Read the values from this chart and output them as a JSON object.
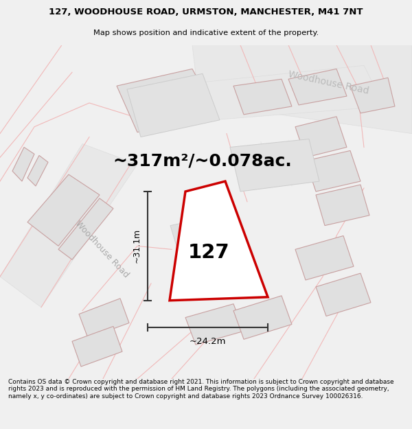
{
  "title_line1": "127, WOODHOUSE ROAD, URMSTON, MANCHESTER, M41 7NT",
  "title_line2": "Map shows position and indicative extent of the property.",
  "area_label": "~317m²/~0.078ac.",
  "number_label": "127",
  "dim_vertical": "~31.1m",
  "dim_horizontal": "~24.2m",
  "road_label_diagonal": "Woodhouse Road",
  "road_label_top_right": "Woodhouse Road",
  "footer_text": "Contains OS data © Crown copyright and database right 2021. This information is subject to Crown copyright and database rights 2023 and is reproduced with the permission of HM Land Registry. The polygons (including the associated geometry, namely x, y co-ordinates) are subject to Crown copyright and database rights 2023 Ordnance Survey 100026316.",
  "bg_color": "#f0f0f0",
  "map_bg": "#ffffff",
  "polygon_fill": "#ffffff",
  "polygon_edge": "#cc0000",
  "road_band_color": "#e8e8e8",
  "road_line_color": "#f0b8b8",
  "building_fill": "#e0e0e0",
  "building_edge": "#c8a0a0",
  "dim_color": "#444444",
  "title_fontsize": 9.5,
  "area_fontsize": 18,
  "number_fontsize": 20,
  "footer_fontsize": 6.5,
  "road_label_color": "#bbbbbb",
  "road_band_edge": "#dddddd"
}
